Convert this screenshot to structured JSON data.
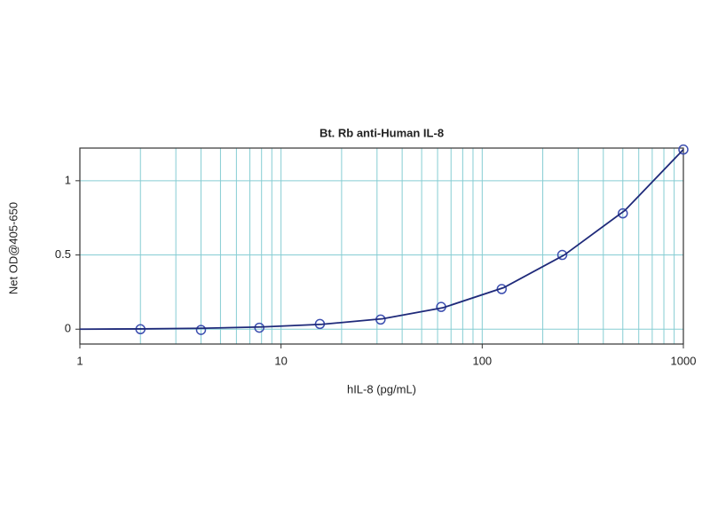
{
  "chart_data": {
    "type": "scatter",
    "title": "Bt. Rb anti-Human IL-8",
    "x_label": "hIL-8 (pg/mL)",
    "y_label": "Net OD@405-650",
    "xscale": "log",
    "grid": true,
    "grid_color": "#86cdd3",
    "xlim": [
      1,
      1000
    ],
    "ylim": [
      -0.1,
      1.22
    ],
    "xticks": [
      1,
      10,
      100,
      1000
    ],
    "xminorticks": [
      2,
      3,
      4,
      5,
      6,
      7,
      8,
      9,
      20,
      30,
      40,
      50,
      60,
      70,
      80,
      90,
      200,
      300,
      400,
      500,
      600,
      700,
      800,
      900
    ],
    "yticks": [
      0,
      0.5,
      1
    ],
    "series": [
      {
        "color": "#3d4fb0",
        "marker": "circle",
        "x": [
          2,
          4,
          7.8,
          15.6,
          31.25,
          62.5,
          125,
          250,
          500,
          1000
        ],
        "values": [
          0.0,
          -0.005,
          0.01,
          0.035,
          0.065,
          0.15,
          0.27,
          0.5,
          0.78,
          1.21
        ]
      },
      {
        "color": "#1f2a7a",
        "line": true,
        "x": [
          1,
          2,
          4,
          8,
          16,
          32,
          64,
          128,
          256,
          512,
          1000
        ],
        "values": [
          0.0,
          0.002,
          0.006,
          0.015,
          0.033,
          0.07,
          0.145,
          0.28,
          0.5,
          0.8,
          1.21
        ]
      }
    ]
  }
}
